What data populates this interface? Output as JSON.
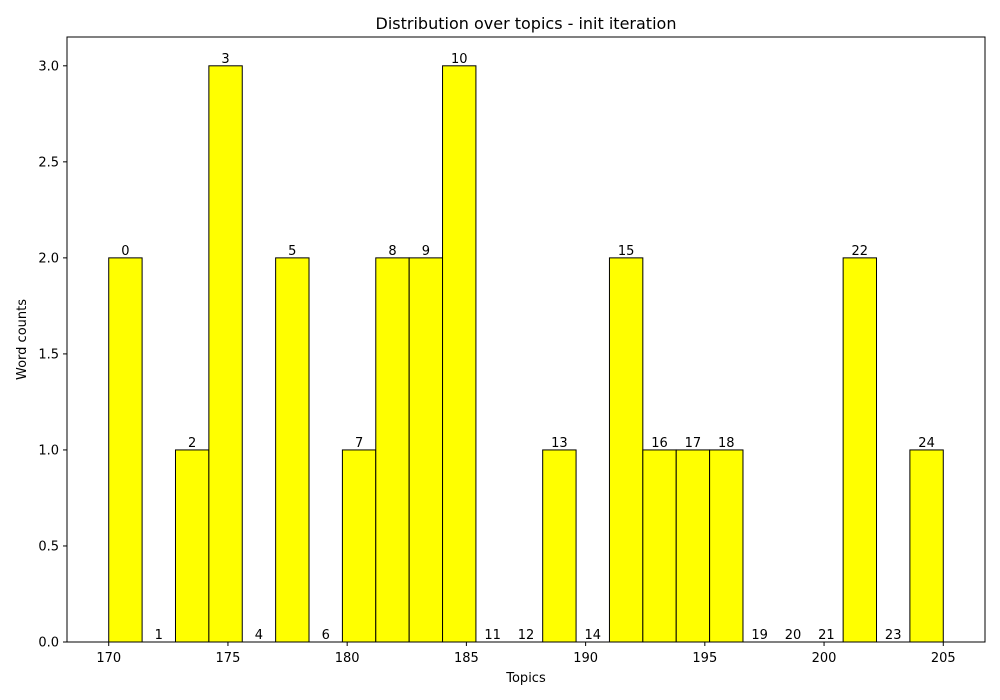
{
  "chart_data": {
    "type": "bar",
    "title": "Distribution over topics - init iteration",
    "xlabel": "Topics",
    "ylabel": "Word counts",
    "xlim": [
      168.25,
      206.75
    ],
    "ylim": [
      0,
      3.15
    ],
    "xticks": [
      170,
      175,
      180,
      185,
      190,
      195,
      200,
      205
    ],
    "yticks": [
      0.0,
      0.5,
      1.0,
      1.5,
      2.0,
      2.5,
      3.0
    ],
    "xtick_labels": [
      "170",
      "175",
      "180",
      "185",
      "190",
      "195",
      "200",
      "205"
    ],
    "ytick_labels": [
      "0.0",
      "0.5",
      "1.0",
      "1.5",
      "2.0",
      "2.5",
      "3.0"
    ],
    "bin_start": 170,
    "bin_width": 1.4,
    "labels": [
      "0",
      "1",
      "2",
      "3",
      "4",
      "5",
      "6",
      "7",
      "8",
      "9",
      "10",
      "11",
      "12",
      "13",
      "14",
      "15",
      "16",
      "17",
      "18",
      "19",
      "20",
      "21",
      "22",
      "23",
      "24"
    ],
    "values": [
      2,
      0,
      1,
      3,
      0,
      2,
      0,
      1,
      2,
      2,
      3,
      0,
      0,
      1,
      0,
      2,
      1,
      1,
      1,
      0,
      0,
      0,
      2,
      0,
      1
    ],
    "bar_color": "#ffff00",
    "edge_color": "#000000",
    "grid": false,
    "legend": "none"
  }
}
